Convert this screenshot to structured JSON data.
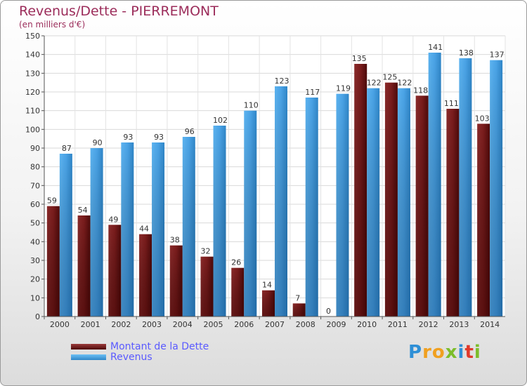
{
  "header": {
    "title": "Revenus/Dette - PIERREMONT",
    "subtitle": "(en milliers d'€)"
  },
  "chart_data": {
    "type": "bar",
    "categories": [
      "2000",
      "2001",
      "2002",
      "2003",
      "2004",
      "2005",
      "2006",
      "2007",
      "2008",
      "2009",
      "2010",
      "2011",
      "2012",
      "2013",
      "2014"
    ],
    "series": [
      {
        "name": "Montant de la Dette",
        "color": "#7a1c1c",
        "values": [
          59,
          54,
          49,
          44,
          38,
          32,
          26,
          14,
          7,
          0,
          135,
          125,
          118,
          111,
          103
        ]
      },
      {
        "name": "Revenus",
        "color": "#4aa3e6",
        "values": [
          87,
          90,
          93,
          93,
          96,
          102,
          110,
          123,
          117,
          119,
          122,
          122,
          141,
          138,
          137
        ]
      }
    ],
    "ylim": [
      0,
      150
    ],
    "yticks": [
      0,
      10,
      20,
      30,
      40,
      50,
      60,
      70,
      80,
      90,
      100,
      110,
      120,
      130,
      140,
      150
    ],
    "grid": true,
    "legend_position": "bottom-left"
  },
  "logo": {
    "letters": [
      "P",
      "r",
      "o",
      "x",
      "i",
      "t",
      "i"
    ],
    "colors": [
      "#2e8fd6",
      "#f0a020",
      "#f0a020",
      "#7cbd2a",
      "#2e8fd6",
      "#e0392b",
      "#7cbd2a"
    ]
  }
}
